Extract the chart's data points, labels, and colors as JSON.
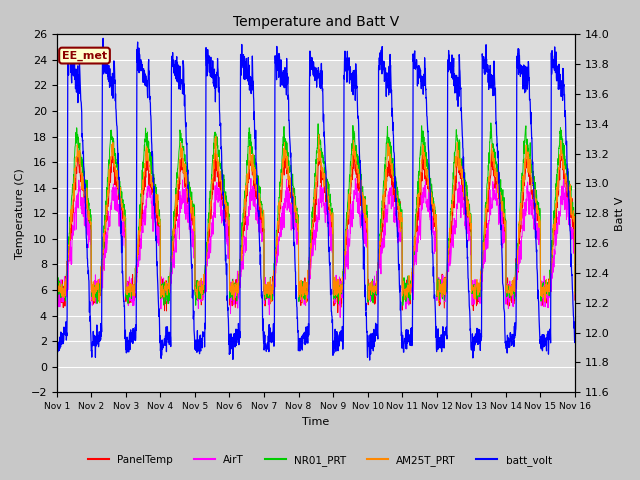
{
  "title": "Temperature and Batt V",
  "ylabel_left": "Temperature (C)",
  "ylabel_right": "Batt V",
  "xlabel": "Time",
  "ylim_left": [
    -2,
    26
  ],
  "ylim_right": [
    11.6,
    14.0
  ],
  "yticks_left": [
    -2,
    0,
    2,
    4,
    6,
    8,
    10,
    12,
    14,
    16,
    18,
    20,
    22,
    24,
    26
  ],
  "yticks_right": [
    11.6,
    11.8,
    12.0,
    12.2,
    12.4,
    12.6,
    12.8,
    13.0,
    13.2,
    13.4,
    13.6,
    13.8,
    14.0
  ],
  "xtick_labels": [
    "Nov 1",
    "Nov 2",
    "Nov 3",
    "Nov 4",
    "Nov 5",
    "Nov 6",
    "Nov 7",
    "Nov 8",
    "Nov 9",
    "Nov 10",
    "Nov 11",
    "Nov 12",
    "Nov 13",
    "Nov 14",
    "Nov 15",
    "Nov 16"
  ],
  "colors": {
    "PanelTemp": "#ff0000",
    "AirT": "#ff00ff",
    "NR01_PRT": "#00cc00",
    "AM25T_PRT": "#ff8800",
    "batt_volt": "#0000ff"
  },
  "legend_labels": [
    "PanelTemp",
    "AirT",
    "NR01_PRT",
    "AM25T_PRT",
    "batt_volt"
  ],
  "annotation_text": "EE_met",
  "annotation_fg": "#8b0000",
  "annotation_bg": "#ffffcc",
  "fig_bg": "#c8c8c8",
  "plot_bg": "#dcdcdc",
  "n_days": 15,
  "pts_per_day": 144,
  "figwidth": 6.4,
  "figheight": 4.8,
  "dpi": 100
}
